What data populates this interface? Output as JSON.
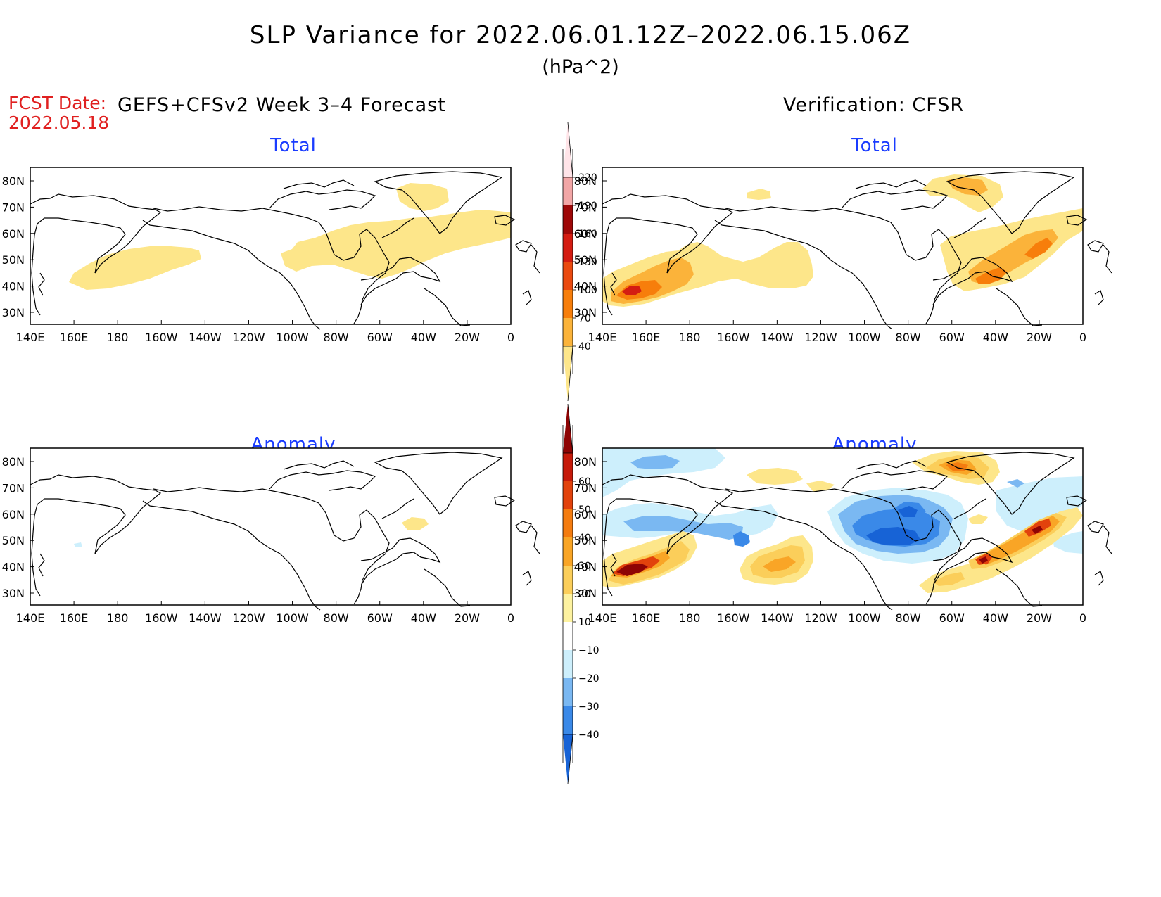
{
  "title": "SLP Variance for 2022.06.01.12Z–2022.06.15.06Z",
  "units": "(hPa^2)",
  "fcst_date_label": "FCST Date:",
  "fcst_date": "2022.05.18",
  "left_header": "GEFS+CFSv2 Week 3–4 Forecast",
  "right_header": "Verification: CFSR",
  "panel_titles": {
    "total": "Total",
    "anomaly": "Anomaly"
  },
  "lon_labels": [
    "140E",
    "160E",
    "180",
    "160W",
    "140W",
    "120W",
    "100W",
    "80W",
    "60W",
    "40W",
    "20W",
    "0"
  ],
  "lat_labels": [
    "80N",
    "70N",
    "60N",
    "50N",
    "40N",
    "30N"
  ],
  "total_colorbar": {
    "levels": [
      "40",
      "70",
      "100",
      "130",
      "160",
      "190",
      "220"
    ],
    "colors": [
      "#fde68a",
      "#fbb33a",
      "#f77e0b",
      "#ea4a10",
      "#d41c12",
      "#9e0808",
      "#f2a6a6",
      "#ffe4e8"
    ]
  },
  "anomaly_colorbar": {
    "levels": [
      "−40",
      "−30",
      "−20",
      "−10",
      "10",
      "20",
      "30",
      "40",
      "50",
      "60"
    ],
    "colors": [
      "#1763d6",
      "#3a89e8",
      "#7ab8f2",
      "#cdeffc",
      "#ffffff",
      "#fdf2a0",
      "#fbce5a",
      "#f9a526",
      "#f47c10",
      "#e2420c",
      "#c61a0a",
      "#8e0404"
    ]
  },
  "chart_data": [
    {
      "type": "heatmap",
      "panel": "top-left",
      "title": "Total",
      "source": "GEFS+CFSv2 Week 3–4 Forecast",
      "x_range": [
        "140E",
        "0"
      ],
      "y_range": [
        "25N",
        "85N"
      ],
      "regions": [
        {
          "area": "North Pacific 160E-140W",
          "level": "40-70"
        },
        {
          "area": "Hudson Bay to North Atlantic",
          "level": "40-70"
        },
        {
          "area": "Greenland",
          "level": "40-70"
        }
      ]
    },
    {
      "type": "heatmap",
      "panel": "top-right",
      "title": "Total",
      "source": "Verification: CFSR",
      "x_range": [
        "140E",
        "0"
      ],
      "y_range": [
        "25N",
        "85N"
      ],
      "regions": [
        {
          "area": "NW Pacific ~145E 38N",
          "level": "130-160"
        },
        {
          "area": "North Pacific 160E-180",
          "level": "70-100"
        },
        {
          "area": "North Atlantic 50W-20W",
          "level": "70-130"
        },
        {
          "area": "Greenland",
          "level": "70-100"
        }
      ]
    },
    {
      "type": "heatmap",
      "panel": "bottom-left",
      "title": "Anomaly",
      "source": "GEFS+CFSv2 Week 3–4 Forecast",
      "x_range": [
        "140E",
        "0"
      ],
      "y_range": [
        "25N",
        "85N"
      ],
      "regions": [
        {
          "area": "~45W 55N",
          "level": "10-20"
        }
      ]
    },
    {
      "type": "heatmap",
      "panel": "bottom-right",
      "title": "Anomaly",
      "source": "Verification: CFSR",
      "x_range": [
        "140E",
        "0"
      ],
      "y_range": [
        "25N",
        "85N"
      ],
      "regions": [
        {
          "area": "NW Pacific ~150E 38N",
          "level": ">60"
        },
        {
          "area": "Hudson Bay / central Canada",
          "level": "−40 to −30"
        },
        {
          "area": "Gulf of Alaska ~155W 50N",
          "level": "−30 to −20"
        },
        {
          "area": "NE Pacific ~135W 42N",
          "level": "20-40"
        },
        {
          "area": "North Atlantic 50W-20W",
          "level": "30-60"
        },
        {
          "area": "Greenland ~60W 78N",
          "level": "30-50"
        }
      ]
    }
  ]
}
